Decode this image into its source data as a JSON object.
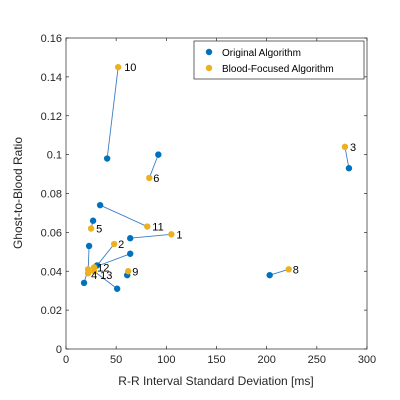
{
  "chart_data": {
    "type": "scatter",
    "title": "",
    "xlabel": "R-R Interval Standard Deviation [ms]",
    "ylabel": "Ghost-to-Blood Ratio",
    "xlim": [
      0,
      300
    ],
    "ylim": [
      0,
      0.16
    ],
    "xticks": [
      0,
      50,
      100,
      150,
      200,
      250,
      300
    ],
    "yticks": [
      0,
      0.02,
      0.04,
      0.06,
      0.08,
      0.1,
      0.12,
      0.14,
      0.16
    ],
    "grid": false,
    "legend_position": "top-right",
    "series": [
      {
        "name": "Original Algorithm",
        "color": "#0072BD",
        "points": [
          {
            "id": "1",
            "x": 64,
            "y": 0.057
          },
          {
            "id": "2",
            "x": 31,
            "y": 0.043
          },
          {
            "id": "3",
            "x": 282,
            "y": 0.093
          },
          {
            "id": "4",
            "x": 23,
            "y": 0.053
          },
          {
            "id": "5",
            "x": 27,
            "y": 0.066
          },
          {
            "id": "6",
            "x": 92,
            "y": 0.1
          },
          {
            "id": "7",
            "x": 18,
            "y": 0.034
          },
          {
            "id": "8",
            "x": 203,
            "y": 0.038
          },
          {
            "id": "9",
            "x": 61,
            "y": 0.038
          },
          {
            "id": "10",
            "x": 41,
            "y": 0.098
          },
          {
            "id": "11",
            "x": 34,
            "y": 0.074
          },
          {
            "id": "12",
            "x": 64,
            "y": 0.049
          },
          {
            "id": "13",
            "x": 51,
            "y": 0.031
          }
        ]
      },
      {
        "name": "Blood-Focused Algorithm",
        "color": "#EDB120",
        "points": [
          {
            "id": "1",
            "x": 105,
            "y": 0.059
          },
          {
            "id": "2",
            "x": 48,
            "y": 0.054
          },
          {
            "id": "3",
            "x": 278,
            "y": 0.104
          },
          {
            "id": "4",
            "x": 22,
            "y": 0.039
          },
          {
            "id": "5",
            "x": 25,
            "y": 0.062
          },
          {
            "id": "6",
            "x": 83,
            "y": 0.088
          },
          {
            "id": "7",
            "x": 22,
            "y": 0.041
          },
          {
            "id": "8",
            "x": 222,
            "y": 0.041
          },
          {
            "id": "9",
            "x": 62,
            "y": 0.04
          },
          {
            "id": "10",
            "x": 52,
            "y": 0.145
          },
          {
            "id": "11",
            "x": 81,
            "y": 0.063
          },
          {
            "id": "12",
            "x": 28,
            "y": 0.042
          },
          {
            "id": "13",
            "x": 28,
            "y": 0.04
          }
        ]
      }
    ],
    "annotations": [
      {
        "text": "1",
        "x": 110,
        "y": 0.059
      },
      {
        "text": "2",
        "x": 52,
        "y": 0.054
      },
      {
        "text": "3",
        "x": 283,
        "y": 0.104
      },
      {
        "text": "4",
        "x": 25,
        "y": 0.038
      },
      {
        "text": "5",
        "x": 30,
        "y": 0.062
      },
      {
        "text": "6",
        "x": 87,
        "y": 0.088
      },
      {
        "text": "8",
        "x": 226,
        "y": 0.041
      },
      {
        "text": "9",
        "x": 66,
        "y": 0.04
      },
      {
        "text": "10",
        "x": 58,
        "y": 0.145
      },
      {
        "text": "11",
        "x": 86,
        "y": 0.063
      },
      {
        "text": "12",
        "x": 31,
        "y": 0.042
      },
      {
        "text": "13",
        "x": 34,
        "y": 0.038
      }
    ]
  }
}
